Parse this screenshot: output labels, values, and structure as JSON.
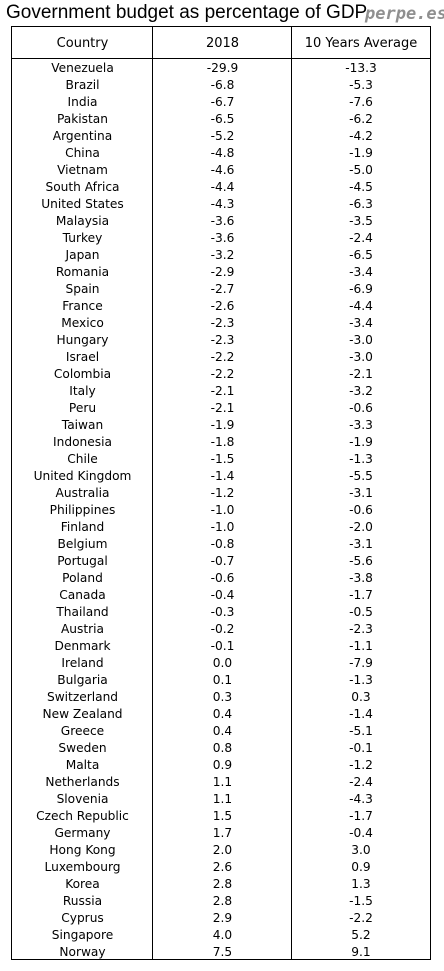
{
  "title": "Government budget as percentage of GDP",
  "watermark": "perpe.es",
  "chart_data": {
    "type": "table",
    "title": "Government budget as percentage of GDP",
    "columns": [
      "Country",
      "2018",
      "10 Years Average"
    ],
    "rows": [
      [
        "Venezuela",
        "-29.9",
        "-13.3"
      ],
      [
        "Brazil",
        "-6.8",
        "-5.3"
      ],
      [
        "India",
        "-6.7",
        "-7.6"
      ],
      [
        "Pakistan",
        "-6.5",
        "-6.2"
      ],
      [
        "Argentina",
        "-5.2",
        "-4.2"
      ],
      [
        "China",
        "-4.8",
        "-1.9"
      ],
      [
        "Vietnam",
        "-4.6",
        "-5.0"
      ],
      [
        "South Africa",
        "-4.4",
        "-4.5"
      ],
      [
        "United States",
        "-4.3",
        "-6.3"
      ],
      [
        "Malaysia",
        "-3.6",
        "-3.5"
      ],
      [
        "Turkey",
        "-3.6",
        "-2.4"
      ],
      [
        "Japan",
        "-3.2",
        "-6.5"
      ],
      [
        "Romania",
        "-2.9",
        "-3.4"
      ],
      [
        "Spain",
        "-2.7",
        "-6.9"
      ],
      [
        "France",
        "-2.6",
        "-4.4"
      ],
      [
        "Mexico",
        "-2.3",
        "-3.4"
      ],
      [
        "Hungary",
        "-2.3",
        "-3.0"
      ],
      [
        "Israel",
        "-2.2",
        "-3.0"
      ],
      [
        "Colombia",
        "-2.2",
        "-2.1"
      ],
      [
        "Italy",
        "-2.1",
        "-3.2"
      ],
      [
        "Peru",
        "-2.1",
        "-0.6"
      ],
      [
        "Taiwan",
        "-1.9",
        "-3.3"
      ],
      [
        "Indonesia",
        "-1.8",
        "-1.9"
      ],
      [
        "Chile",
        "-1.5",
        "-1.3"
      ],
      [
        "United Kingdom",
        "-1.4",
        "-5.5"
      ],
      [
        "Australia",
        "-1.2",
        "-3.1"
      ],
      [
        "Philippines",
        "-1.0",
        "-0.6"
      ],
      [
        "Finland",
        "-1.0",
        "-2.0"
      ],
      [
        "Belgium",
        "-0.8",
        "-3.1"
      ],
      [
        "Portugal",
        "-0.7",
        "-5.6"
      ],
      [
        "Poland",
        "-0.6",
        "-3.8"
      ],
      [
        "Canada",
        "-0.4",
        "-1.7"
      ],
      [
        "Thailand",
        "-0.3",
        "-0.5"
      ],
      [
        "Austria",
        "-0.2",
        "-2.3"
      ],
      [
        "Denmark",
        "-0.1",
        "-1.1"
      ],
      [
        "Ireland",
        "0.0",
        "-7.9"
      ],
      [
        "Bulgaria",
        "0.1",
        "-1.3"
      ],
      [
        "Switzerland",
        "0.3",
        "0.3"
      ],
      [
        "New Zealand",
        "0.4",
        "-1.4"
      ],
      [
        "Greece",
        "0.4",
        "-5.1"
      ],
      [
        "Sweden",
        "0.8",
        "-0.1"
      ],
      [
        "Malta",
        "0.9",
        "-1.2"
      ],
      [
        "Netherlands",
        "1.1",
        "-2.4"
      ],
      [
        "Slovenia",
        "1.1",
        "-4.3"
      ],
      [
        "Czech Republic",
        "1.5",
        "-1.7"
      ],
      [
        "Germany",
        "1.7",
        "-0.4"
      ],
      [
        "Hong Kong",
        "2.0",
        "3.0"
      ],
      [
        "Luxembourg",
        "2.6",
        "0.9"
      ],
      [
        "Korea",
        "2.8",
        "1.3"
      ],
      [
        "Russia",
        "2.8",
        "-1.5"
      ],
      [
        "Cyprus",
        "2.9",
        "-2.2"
      ],
      [
        "Singapore",
        "4.0",
        "5.2"
      ],
      [
        "Norway",
        "7.5",
        "9.1"
      ]
    ]
  }
}
